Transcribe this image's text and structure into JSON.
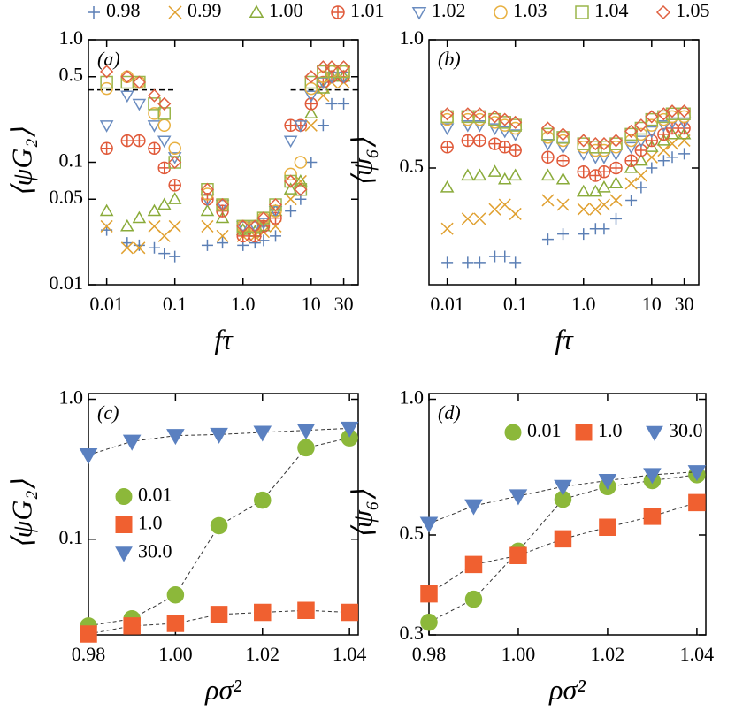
{
  "chart_data": [
    {
      "type": "scatter",
      "panel_label": "(a)",
      "x_label": "fτ",
      "y_label": "⟨ψG₂⟩",
      "xscale": "log",
      "yscale": "log",
      "xlim": [
        0.0054,
        49
      ],
      "ylim": [
        0.01,
        1
      ],
      "xticks": [
        0.01,
        0.1,
        {
          "value": 1,
          "label": "1.0"
        },
        10,
        30
      ],
      "yticks": [
        0.01,
        0.05,
        0.1,
        0.5,
        {
          "value": 1,
          "label": "1.0"
        }
      ],
      "reference_lines": [
        {
          "y": 0.39,
          "xlim": [
            0.0054,
            0.1
          ]
        },
        {
          "y": 0.39,
          "xlim": [
            5,
            49
          ]
        }
      ],
      "x": [
        0.01,
        0.02,
        0.03,
        0.05,
        0.07,
        0.1,
        0.3,
        0.5,
        1,
        1.5,
        2,
        3,
        5,
        7,
        10,
        15,
        20,
        30
      ],
      "series": [
        {
          "name": "0.98",
          "color": "#5b7fb5",
          "marker": "plus",
          "values": [
            0.028,
            0.022,
            0.021,
            0.02,
            0.018,
            0.017,
            0.021,
            0.022,
            0.021,
            0.022,
            0.023,
            0.025,
            0.04,
            0.05,
            0.1,
            0.2,
            0.3,
            0.3
          ]
        },
        {
          "name": "0.99",
          "color": "#e0a030",
          "marker": "x",
          "values": [
            0.03,
            0.02,
            0.02,
            0.03,
            0.025,
            0.03,
            0.03,
            0.025,
            0.025,
            0.025,
            0.027,
            0.03,
            0.05,
            0.07,
            0.2,
            0.35,
            0.45,
            0.45
          ]
        },
        {
          "name": "1.00",
          "color": "#8aab3a",
          "marker": "triangle-up",
          "values": [
            0.04,
            0.03,
            0.035,
            0.04,
            0.045,
            0.05,
            0.04,
            0.035,
            0.028,
            0.027,
            0.03,
            0.04,
            0.06,
            0.07,
            0.25,
            0.4,
            0.5,
            0.5
          ]
        },
        {
          "name": "1.01",
          "color": "#e05a3a",
          "marker": "circle-plus",
          "values": [
            0.13,
            0.15,
            0.15,
            0.13,
            0.09,
            0.065,
            0.05,
            0.04,
            0.025,
            0.025,
            0.03,
            0.035,
            0.2,
            0.2,
            0.3,
            0.45,
            0.5,
            0.5
          ]
        },
        {
          "name": "1.02",
          "color": "#6a8cc0",
          "marker": "triangle-down",
          "values": [
            0.2,
            0.35,
            0.3,
            0.2,
            0.15,
            0.11,
            0.05,
            0.045,
            0.03,
            0.03,
            0.032,
            0.04,
            0.15,
            0.2,
            0.35,
            0.45,
            0.5,
            0.5
          ]
        },
        {
          "name": "1.03",
          "color": "#e8b040",
          "marker": "circle",
          "values": [
            0.4,
            0.5,
            0.45,
            0.25,
            0.2,
            0.13,
            0.055,
            0.045,
            0.03,
            0.03,
            0.035,
            0.04,
            0.08,
            0.1,
            0.4,
            0.5,
            0.55,
            0.55
          ]
        },
        {
          "name": "1.04",
          "color": "#9ab54a",
          "marker": "square",
          "values": [
            0.45,
            0.45,
            0.45,
            0.3,
            0.25,
            0.1,
            0.06,
            0.045,
            0.03,
            0.03,
            0.035,
            0.045,
            0.07,
            0.06,
            0.45,
            0.55,
            0.55,
            0.55
          ]
        },
        {
          "name": "1.05",
          "color": "#e06040",
          "marker": "diamond",
          "values": [
            0.55,
            0.5,
            0.45,
            0.35,
            0.3,
            0.1,
            0.06,
            0.045,
            0.03,
            0.03,
            0.035,
            0.045,
            0.07,
            0.06,
            0.5,
            0.6,
            0.6,
            0.6
          ]
        }
      ]
    },
    {
      "type": "scatter",
      "panel_label": "(b)",
      "x_label": "fτ",
      "y_label": "⟨ψ₆⟩",
      "xscale": "log",
      "yscale": "log",
      "xlim": [
        0.0054,
        49
      ],
      "ylim": [
        0.266,
        1
      ],
      "xticks": [
        0.01,
        0.1,
        {
          "value": 1,
          "label": "1.0"
        },
        10,
        30
      ],
      "yticks": [
        0.5,
        {
          "value": 1,
          "label": "1.0"
        }
      ],
      "x": [
        0.01,
        0.02,
        0.03,
        0.05,
        0.07,
        0.1,
        0.3,
        0.5,
        1,
        1.5,
        2,
        3,
        5,
        7,
        10,
        15,
        20,
        30
      ],
      "series": [
        {
          "color": "#5b7fb5",
          "marker": "plus",
          "values": [
            0.3,
            0.3,
            0.3,
            0.31,
            0.31,
            0.3,
            0.34,
            0.35,
            0.35,
            0.36,
            0.36,
            0.38,
            0.42,
            0.45,
            0.5,
            0.52,
            0.53,
            0.54
          ]
        },
        {
          "color": "#e0a030",
          "marker": "x",
          "values": [
            0.36,
            0.38,
            0.38,
            0.4,
            0.41,
            0.39,
            0.42,
            0.41,
            0.4,
            0.4,
            0.41,
            0.42,
            0.46,
            0.48,
            0.53,
            0.55,
            0.57,
            0.58
          ]
        },
        {
          "color": "#8aab3a",
          "marker": "triangle-up",
          "values": [
            0.45,
            0.48,
            0.48,
            0.49,
            0.47,
            0.48,
            0.48,
            0.47,
            0.44,
            0.44,
            0.45,
            0.46,
            0.5,
            0.52,
            0.56,
            0.58,
            0.6,
            0.6
          ]
        },
        {
          "color": "#e05a3a",
          "marker": "circle-plus",
          "values": [
            0.56,
            0.58,
            0.58,
            0.57,
            0.56,
            0.55,
            0.53,
            0.52,
            0.49,
            0.48,
            0.49,
            0.5,
            0.52,
            0.55,
            0.58,
            0.6,
            0.62,
            0.62
          ]
        },
        {
          "color": "#6a8cc0",
          "marker": "triangle-down",
          "values": [
            0.62,
            0.63,
            0.63,
            0.62,
            0.61,
            0.6,
            0.57,
            0.56,
            0.54,
            0.53,
            0.53,
            0.54,
            0.56,
            0.58,
            0.61,
            0.63,
            0.64,
            0.64
          ]
        },
        {
          "color": "#e8b040",
          "marker": "circle",
          "values": [
            0.65,
            0.65,
            0.65,
            0.64,
            0.63,
            0.62,
            0.59,
            0.58,
            0.56,
            0.55,
            0.55,
            0.56,
            0.58,
            0.6,
            0.63,
            0.65,
            0.66,
            0.66
          ]
        },
        {
          "color": "#9ab54a",
          "marker": "square",
          "values": [
            0.66,
            0.66,
            0.66,
            0.65,
            0.64,
            0.63,
            0.6,
            0.59,
            0.57,
            0.56,
            0.56,
            0.57,
            0.6,
            0.62,
            0.65,
            0.66,
            0.67,
            0.67
          ]
        },
        {
          "color": "#e06040",
          "marker": "diamond",
          "values": [
            0.67,
            0.67,
            0.67,
            0.66,
            0.65,
            0.64,
            0.62,
            0.6,
            0.58,
            0.57,
            0.57,
            0.58,
            0.61,
            0.63,
            0.66,
            0.67,
            0.68,
            0.68
          ]
        }
      ]
    },
    {
      "type": "line",
      "panel_label": "(c)",
      "x_label": "ρσ²",
      "y_label": "⟨ψG₂⟩",
      "yscale": "log",
      "legend": "center left",
      "xlim": [
        0.98,
        1.042
      ],
      "ylim": [
        0.0207,
        1.1
      ],
      "xticks": [
        0.98,
        {
          "value": 1,
          "label": "1.00"
        },
        1.02,
        1.04
      ],
      "yticks": [
        0.1,
        {
          "value": 1,
          "label": "1.0"
        }
      ],
      "x": [
        0.98,
        0.99,
        1.0,
        1.01,
        1.02,
        1.03,
        1.04
      ],
      "series": [
        {
          "name": "0.01",
          "color": "#8cb83a",
          "marker": "circle",
          "values": [
            0.024,
            0.027,
            0.04,
            0.125,
            0.19,
            0.45,
            0.53
          ]
        },
        {
          "name": "1.0",
          "color": "#f06030",
          "marker": "square",
          "values": [
            0.021,
            0.024,
            0.025,
            0.029,
            0.03,
            0.031,
            0.03
          ]
        },
        {
          "name": "30.0",
          "color": "#5a80c0",
          "marker": "triangle-down",
          "values": [
            0.4,
            0.5,
            0.55,
            0.56,
            0.58,
            0.6,
            0.62
          ]
        }
      ]
    },
    {
      "type": "line",
      "panel_label": "(d)",
      "x_label": "ρσ²",
      "y_label": "⟨ψ₆⟩",
      "yscale": "log",
      "legend": "upper left",
      "xlim": [
        0.98,
        1.042
      ],
      "ylim": [
        0.3,
        1.03
      ],
      "xticks": [
        0.98,
        {
          "value": 1,
          "label": "1.00"
        },
        1.02,
        1.04
      ],
      "yticks": [
        0.3,
        0.5,
        {
          "value": 1,
          "label": "1.0"
        }
      ],
      "x": [
        0.98,
        0.99,
        1.0,
        1.01,
        1.02,
        1.03,
        1.04
      ],
      "series": [
        {
          "name": "0.01",
          "color": "#8cb83a",
          "marker": "circle",
          "values": [
            0.32,
            0.36,
            0.46,
            0.6,
            0.64,
            0.66,
            0.68
          ]
        },
        {
          "name": "1.0",
          "color": "#f06030",
          "marker": "square",
          "values": [
            0.37,
            0.43,
            0.45,
            0.49,
            0.52,
            0.55,
            0.59
          ]
        },
        {
          "name": "30.0",
          "color": "#5a80c0",
          "marker": "triangle-down",
          "values": [
            0.53,
            0.58,
            0.61,
            0.64,
            0.66,
            0.68,
            0.69
          ]
        }
      ]
    }
  ]
}
